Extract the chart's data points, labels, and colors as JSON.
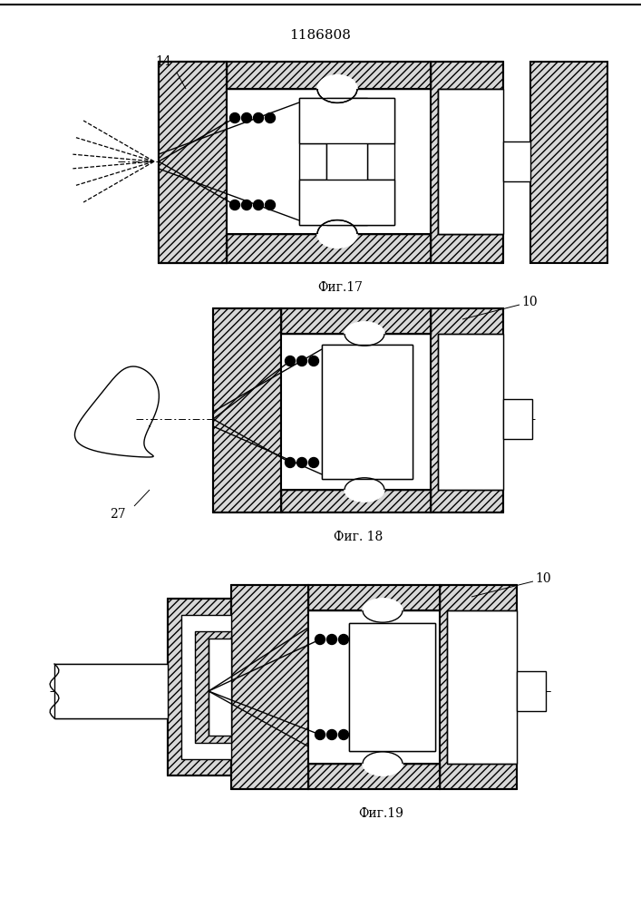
{
  "title": "1186808",
  "fig_labels": [
    "Фиг.17",
    "Фиг. 18",
    "Фиг.19"
  ],
  "bg_color": "#ffffff",
  "lw_main": 1.5,
  "lw_inner": 1.0,
  "lw_thin": 0.7,
  "dot_r": 5.5
}
